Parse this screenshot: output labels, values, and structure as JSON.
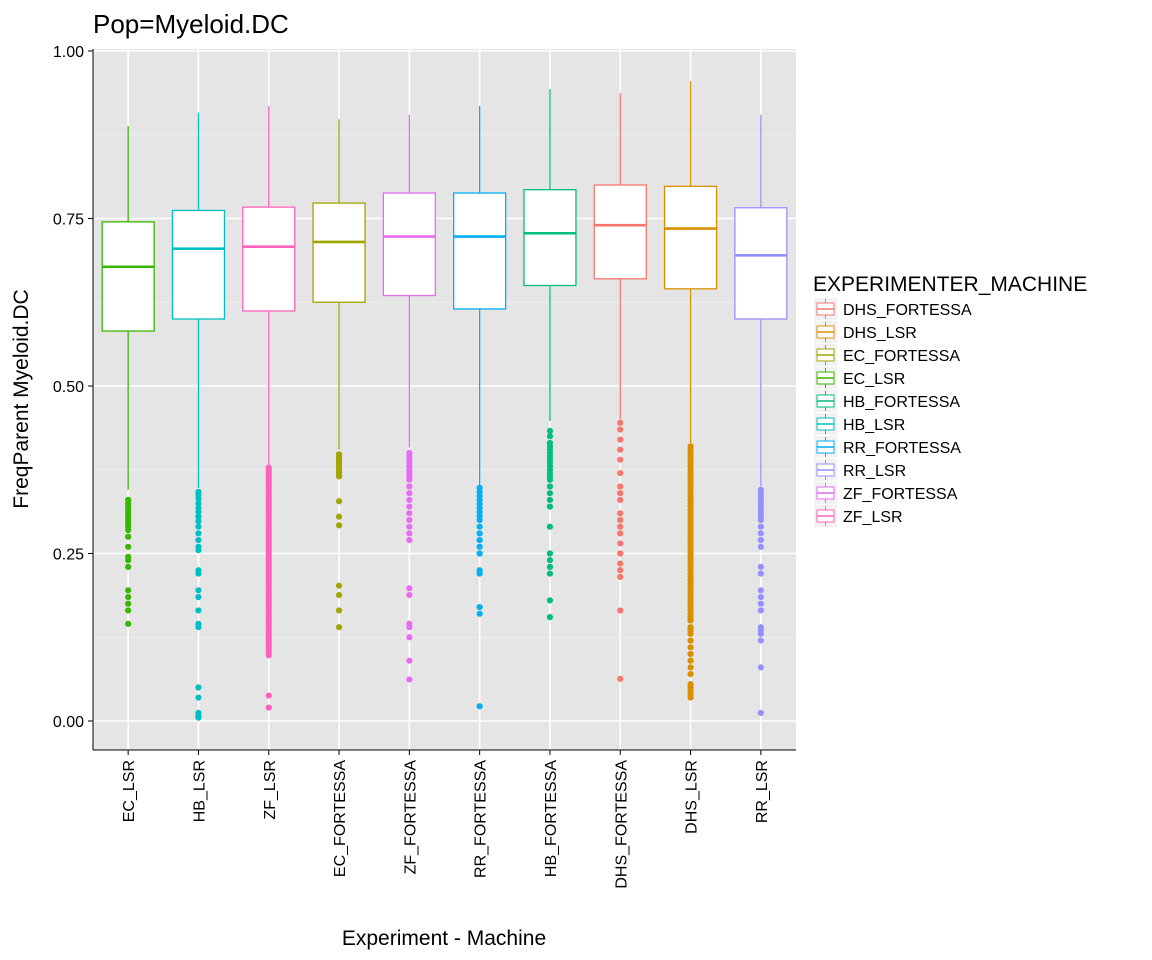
{
  "chart_data": {
    "type": "box",
    "title": "Pop=Myeloid.DC",
    "xlabel": "Experiment - Machine",
    "ylabel": "FreqParent  Myeloid.DC",
    "ylim": [
      -0.04,
      1.0
    ],
    "yticks": [
      0.0,
      0.25,
      0.5,
      0.75,
      1.0
    ],
    "ytick_labels": [
      "0.00",
      "0.25",
      "0.50",
      "0.75",
      "1.00"
    ],
    "grid": true,
    "legend": {
      "title": "EXPERIMENTER_MACHINE",
      "position": "right",
      "entries": [
        {
          "label": "DHS_FORTESSA",
          "color": "#F8766D"
        },
        {
          "label": "DHS_LSR",
          "color": "#D89000"
        },
        {
          "label": "EC_FORTESSA",
          "color": "#A3A500"
        },
        {
          "label": "EC_LSR",
          "color": "#39B600"
        },
        {
          "label": "HB_FORTESSA",
          "color": "#00BF7D"
        },
        {
          "label": "HB_LSR",
          "color": "#00BFC4"
        },
        {
          "label": "RR_FORTESSA",
          "color": "#00B0F6"
        },
        {
          "label": "RR_LSR",
          "color": "#9590FF"
        },
        {
          "label": "ZF_FORTESSA",
          "color": "#E76BF3"
        },
        {
          "label": "ZF_LSR",
          "color": "#FF62BC"
        }
      ]
    },
    "categories": [
      "EC_LSR",
      "HB_LSR",
      "ZF_LSR",
      "EC_FORTESSA",
      "ZF_FORTESSA",
      "RR_FORTESSA",
      "HB_FORTESSA",
      "DHS_FORTESSA",
      "DHS_LSR",
      "RR_LSR"
    ],
    "boxes": [
      {
        "category": "EC_LSR",
        "color": "#39B600",
        "whisker_low": 0.345,
        "q1": 0.582,
        "median": 0.678,
        "q3": 0.745,
        "whisker_high": 0.888,
        "outliers": [
          0.33,
          0.325,
          0.32,
          0.315,
          0.31,
          0.305,
          0.3,
          0.295,
          0.29,
          0.285,
          0.275,
          0.26,
          0.245,
          0.24,
          0.23,
          0.195,
          0.185,
          0.175,
          0.165,
          0.145
        ]
      },
      {
        "category": "HB_LSR",
        "color": "#00BFC4",
        "whisker_low": 0.348,
        "q1": 0.6,
        "median": 0.705,
        "q3": 0.762,
        "whisker_high": 0.908,
        "outliers": [
          0.342,
          0.338,
          0.332,
          0.325,
          0.318,
          0.312,
          0.305,
          0.298,
          0.29,
          0.28,
          0.27,
          0.26,
          0.255,
          0.225,
          0.22,
          0.195,
          0.185,
          0.165,
          0.145,
          0.14,
          0.05,
          0.035,
          0.012,
          0.008,
          0.005
        ]
      },
      {
        "category": "ZF_LSR",
        "color": "#FF62BC",
        "whisker_low": 0.382,
        "q1": 0.612,
        "median": 0.708,
        "q3": 0.767,
        "whisker_high": 0.918,
        "outliers": [
          0.378,
          0.374,
          0.37,
          0.366,
          0.362,
          0.358,
          0.354,
          0.35,
          0.346,
          0.342,
          0.338,
          0.334,
          0.33,
          0.326,
          0.322,
          0.318,
          0.314,
          0.31,
          0.306,
          0.302,
          0.298,
          0.294,
          0.29,
          0.286,
          0.282,
          0.278,
          0.274,
          0.27,
          0.266,
          0.262,
          0.258,
          0.254,
          0.25,
          0.246,
          0.242,
          0.238,
          0.234,
          0.23,
          0.226,
          0.222,
          0.218,
          0.214,
          0.21,
          0.206,
          0.202,
          0.198,
          0.194,
          0.19,
          0.186,
          0.182,
          0.178,
          0.174,
          0.17,
          0.166,
          0.162,
          0.158,
          0.154,
          0.15,
          0.146,
          0.142,
          0.138,
          0.134,
          0.13,
          0.126,
          0.122,
          0.118,
          0.114,
          0.11,
          0.106,
          0.102,
          0.098,
          0.038,
          0.02
        ]
      },
      {
        "category": "EC_FORTESSA",
        "color": "#A3A500",
        "whisker_low": 0.405,
        "q1": 0.625,
        "median": 0.715,
        "q3": 0.773,
        "whisker_high": 0.898,
        "outliers": [
          0.398,
          0.394,
          0.39,
          0.386,
          0.382,
          0.378,
          0.374,
          0.37,
          0.365,
          0.328,
          0.305,
          0.292,
          0.202,
          0.188,
          0.165,
          0.14
        ]
      },
      {
        "category": "ZF_FORTESSA",
        "color": "#E76BF3",
        "whisker_low": 0.408,
        "q1": 0.635,
        "median": 0.723,
        "q3": 0.788,
        "whisker_high": 0.905,
        "outliers": [
          0.4,
          0.395,
          0.39,
          0.385,
          0.38,
          0.375,
          0.37,
          0.365,
          0.36,
          0.35,
          0.34,
          0.33,
          0.32,
          0.31,
          0.3,
          0.29,
          0.28,
          0.27,
          0.198,
          0.188,
          0.145,
          0.14,
          0.125,
          0.09,
          0.062
        ]
      },
      {
        "category": "RR_FORTESSA",
        "color": "#00B0F6",
        "whisker_low": 0.352,
        "q1": 0.615,
        "median": 0.723,
        "q3": 0.788,
        "whisker_high": 0.918,
        "outliers": [
          0.348,
          0.342,
          0.336,
          0.33,
          0.324,
          0.318,
          0.312,
          0.306,
          0.3,
          0.29,
          0.28,
          0.27,
          0.26,
          0.25,
          0.225,
          0.22,
          0.17,
          0.16,
          0.022
        ]
      },
      {
        "category": "HB_FORTESSA",
        "color": "#00BF7D",
        "whisker_low": 0.448,
        "q1": 0.65,
        "median": 0.728,
        "q3": 0.793,
        "whisker_high": 0.943,
        "outliers": [
          0.433,
          0.425,
          0.415,
          0.41,
          0.405,
          0.4,
          0.395,
          0.39,
          0.385,
          0.38,
          0.375,
          0.37,
          0.365,
          0.36,
          0.35,
          0.34,
          0.33,
          0.32,
          0.29,
          0.25,
          0.24,
          0.23,
          0.22,
          0.18,
          0.155
        ]
      },
      {
        "category": "DHS_FORTESSA",
        "color": "#F8766D",
        "whisker_low": 0.45,
        "q1": 0.66,
        "median": 0.74,
        "q3": 0.8,
        "whisker_high": 0.937,
        "outliers": [
          0.445,
          0.435,
          0.42,
          0.405,
          0.39,
          0.37,
          0.35,
          0.34,
          0.33,
          0.31,
          0.3,
          0.29,
          0.28,
          0.265,
          0.25,
          0.235,
          0.225,
          0.215,
          0.165,
          0.063
        ]
      },
      {
        "category": "DHS_LSR",
        "color": "#D89000",
        "whisker_low": 0.415,
        "q1": 0.645,
        "median": 0.735,
        "q3": 0.798,
        "whisker_high": 0.955,
        "outliers": [
          0.41,
          0.405,
          0.4,
          0.395,
          0.39,
          0.385,
          0.38,
          0.375,
          0.37,
          0.365,
          0.36,
          0.355,
          0.35,
          0.345,
          0.34,
          0.335,
          0.33,
          0.325,
          0.32,
          0.315,
          0.31,
          0.305,
          0.3,
          0.295,
          0.29,
          0.285,
          0.28,
          0.275,
          0.27,
          0.265,
          0.26,
          0.255,
          0.25,
          0.245,
          0.24,
          0.235,
          0.23,
          0.225,
          0.22,
          0.215,
          0.21,
          0.205,
          0.2,
          0.195,
          0.19,
          0.185,
          0.18,
          0.175,
          0.17,
          0.165,
          0.16,
          0.155,
          0.15,
          0.14,
          0.135,
          0.13,
          0.12,
          0.11,
          0.1,
          0.09,
          0.08,
          0.07,
          0.055,
          0.05,
          0.045,
          0.04,
          0.035
        ]
      },
      {
        "category": "RR_LSR",
        "color": "#9590FF",
        "whisker_low": 0.35,
        "q1": 0.6,
        "median": 0.695,
        "q3": 0.766,
        "whisker_high": 0.905,
        "outliers": [
          0.345,
          0.34,
          0.335,
          0.33,
          0.325,
          0.32,
          0.315,
          0.31,
          0.305,
          0.3,
          0.29,
          0.28,
          0.27,
          0.26,
          0.23,
          0.22,
          0.195,
          0.185,
          0.175,
          0.165,
          0.14,
          0.135,
          0.13,
          0.12,
          0.08,
          0.012
        ]
      }
    ]
  }
}
